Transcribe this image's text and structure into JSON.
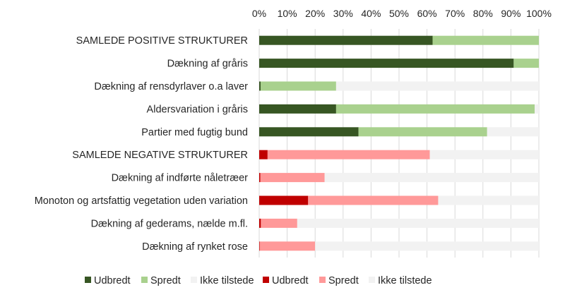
{
  "chart_data": {
    "type": "bar",
    "orientation": "horizontal",
    "stacked": "percent",
    "title": "",
    "xlabel": "",
    "ylabel": "",
    "xlim": [
      0,
      100
    ],
    "x_ticks": [
      "0%",
      "10%",
      "20%",
      "30%",
      "40%",
      "50%",
      "60%",
      "70%",
      "80%",
      "90%",
      "100%"
    ],
    "grid": true,
    "legend_position": "bottom",
    "categories": [
      "SAMLEDE POSITIVE STRUKTURER",
      "Dækning af gråris",
      "Dækning af rensdyrlaver o.a laver",
      "Aldersvariation i gråris",
      "Partier med fugtig bund",
      "SAMLEDE NEGATIVE STRUKTURER",
      "Dækning af indførte nåletræer",
      "Monoton og artsfattig vegetation uden variation",
      "Dækning af gederams, nælde m.fl.",
      "Dækning af rynket rose"
    ],
    "group": [
      "positive",
      "positive",
      "positive",
      "positive",
      "positive",
      "negative",
      "negative",
      "negative",
      "negative",
      "negative"
    ],
    "series": [
      {
        "name": "Udbredt",
        "group": "positive",
        "color": "#375623",
        "values": [
          62,
          91,
          0.5,
          27.5,
          35.5,
          0,
          0,
          0,
          0,
          0
        ]
      },
      {
        "name": "Spredt",
        "group": "positive",
        "color": "#a9d18e",
        "values": [
          38,
          9,
          27,
          71,
          46,
          0,
          0,
          0,
          0,
          0
        ]
      },
      {
        "name": "Ikke tilstede",
        "group": "positive",
        "color": "#f2f2f2",
        "values": [
          0,
          0,
          72.5,
          1.5,
          18.5,
          0,
          0,
          0,
          0,
          0
        ]
      },
      {
        "name": "Udbredt",
        "group": "negative",
        "color": "#c00000",
        "values": [
          0,
          0,
          0,
          0,
          0,
          3,
          0.4,
          17.5,
          0.6,
          0.2
        ]
      },
      {
        "name": "Spredt",
        "group": "negative",
        "color": "#ff9999",
        "values": [
          0,
          0,
          0,
          0,
          0,
          58,
          23,
          46.5,
          13,
          19.8
        ]
      },
      {
        "name": "Ikke tilstede",
        "group": "negative",
        "color": "#f2f2f2",
        "values": [
          0,
          0,
          0,
          0,
          0,
          39,
          76.6,
          36,
          86.4,
          80
        ]
      }
    ]
  }
}
